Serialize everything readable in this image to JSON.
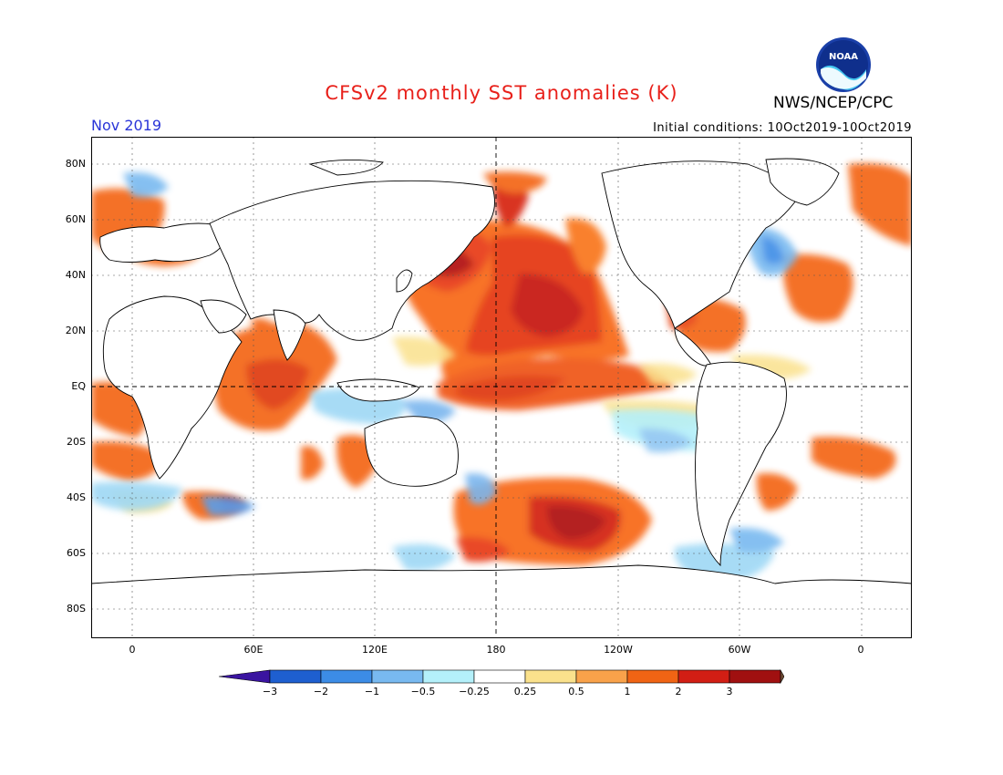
{
  "header": {
    "title": "CFSv2 monthly SST anomalies (K)",
    "agency": "NWS/NCEP/CPC",
    "month": "Nov 2019",
    "initial_conditions": "Initial conditions: 10Oct2019-10Oct2019",
    "logo_text": "NOAA"
  },
  "map": {
    "lat_labels": [
      "80N",
      "60N",
      "40N",
      "20N",
      "EQ",
      "20S",
      "40S",
      "60S",
      "80S"
    ],
    "lon_labels": [
      "0",
      "60E",
      "120E",
      "180",
      "120W",
      "60W",
      "0"
    ]
  },
  "colorbar": {
    "labels": [
      "-3",
      "-2",
      "-1",
      "-0.5",
      "-0.25",
      "0.25",
      "0.5",
      "1",
      "2",
      "3"
    ],
    "colors": [
      "#3a14a0",
      "#1e5fd0",
      "#3c8ce6",
      "#78b9f0",
      "#b4f0fa",
      "#ffffff",
      "#fae18c",
      "#f9a24a",
      "#f06414",
      "#d21e14",
      "#a01010",
      "#6e4a32"
    ]
  }
}
